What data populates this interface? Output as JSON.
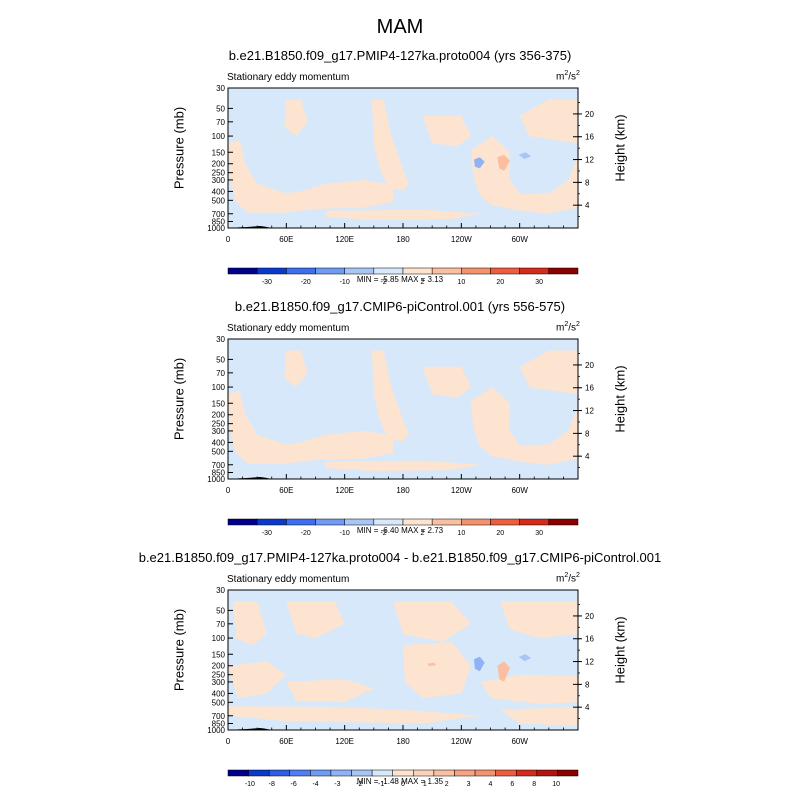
{
  "figure": {
    "title": "MAM"
  },
  "colors": {
    "ramp_11": [
      "#00008b",
      "#0a3acc",
      "#3d6ef0",
      "#6f9bf5",
      "#a8c6f5",
      "#d6e8fa",
      "#fde4d0",
      "#f9bfa0",
      "#f5926e",
      "#ee5d3e",
      "#d42b1c",
      "#8b0000"
    ],
    "ramp_diff": [
      "#00008b",
      "#0a3acc",
      "#2e5ee6",
      "#4f7ef2",
      "#6f9bf5",
      "#8fb2f5",
      "#a8c6f5",
      "#d6e8fa",
      "#fde4d0",
      "#fbd2b8",
      "#f9bfa0",
      "#f5a383",
      "#f5926e",
      "#ee5d3e",
      "#d42b1c",
      "#b21510",
      "#8b0000"
    ],
    "topography": "#000000"
  },
  "chart_data": [
    {
      "type": "heatmap",
      "title": "b.e21.B1850.f09_g17.PMIP4-127ka.proto004 (yrs 356-375)",
      "left_string": "Stationary eddy momentum",
      "right_string": "m",
      "right_string_sup": "2",
      "right_string_tail": "/s",
      "right_string_sup2": "2",
      "ylabel": "Pressure (mb)",
      "ylabel_right": "Height (km)",
      "xlim": [
        0,
        360
      ],
      "x_ticks": [
        "0",
        "60E",
        "120E",
        "180",
        "120W",
        "60W"
      ],
      "pressure_ticks": [
        "30",
        "50",
        "70",
        "100",
        "150",
        "200",
        "250",
        "300",
        "400",
        "500",
        "700",
        "850",
        "1000"
      ],
      "height_ticks": [
        "20",
        "16",
        "12",
        "8",
        "4"
      ],
      "minmax": "MIN = -5.85  MAX =  3.13",
      "min": -5.85,
      "max": 3.13,
      "colorbar_levels": [
        "-30",
        "-20",
        "-10",
        "-2",
        "2",
        "10",
        "20",
        "30"
      ]
    },
    {
      "type": "heatmap",
      "title": "b.e21.B1850.f09_g17.CMIP6-piControl.001 (yrs 556-575)",
      "left_string": "Stationary eddy momentum",
      "right_string": "m",
      "right_string_sup": "2",
      "right_string_tail": "/s",
      "right_string_sup2": "2",
      "ylabel": "Pressure (mb)",
      "ylabel_right": "Height (km)",
      "xlim": [
        0,
        360
      ],
      "x_ticks": [
        "0",
        "60E",
        "120E",
        "180",
        "120W",
        "60W"
      ],
      "pressure_ticks": [
        "30",
        "50",
        "70",
        "100",
        "150",
        "200",
        "250",
        "300",
        "400",
        "500",
        "700",
        "850",
        "1000"
      ],
      "height_ticks": [
        "20",
        "16",
        "12",
        "8",
        "4"
      ],
      "minmax": "MIN = -6.40  MAX =  2.73",
      "min": -6.4,
      "max": 2.73,
      "colorbar_levels": [
        "-30",
        "-20",
        "-10",
        "-2",
        "2",
        "10",
        "20",
        "30"
      ]
    },
    {
      "type": "heatmap",
      "title": "b.e21.B1850.f09_g17.PMIP4-127ka.proto004 - b.e21.B1850.f09_g17.CMIP6-piControl.001",
      "left_string": "Stationary eddy momentum",
      "right_string": "m",
      "right_string_sup": "2",
      "right_string_tail": "/s",
      "right_string_sup2": "2",
      "ylabel": "Pressure (mb)",
      "ylabel_right": "Height (km)",
      "xlim": [
        0,
        360
      ],
      "x_ticks": [
        "0",
        "60E",
        "120E",
        "180",
        "120W",
        "60W"
      ],
      "pressure_ticks": [
        "30",
        "50",
        "70",
        "100",
        "150",
        "200",
        "250",
        "300",
        "400",
        "500",
        "700",
        "850",
        "1000"
      ],
      "height_ticks": [
        "20",
        "16",
        "12",
        "8",
        "4"
      ],
      "minmax": "MIN = -1.48  MAX =  1.35",
      "min": -1.48,
      "max": 1.35,
      "colorbar_levels": [
        "-10",
        "-8",
        "-6",
        "-4",
        "-3",
        "-2",
        "-1",
        "0",
        "1",
        "2",
        "3",
        "4",
        "6",
        "8",
        "10"
      ]
    }
  ]
}
